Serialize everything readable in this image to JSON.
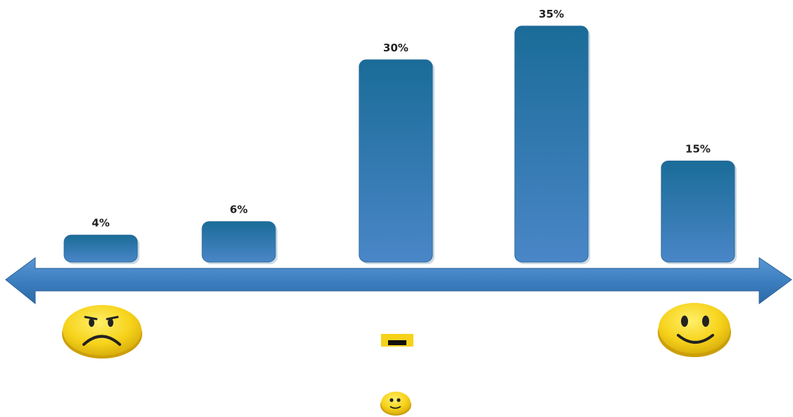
{
  "chart_data": {
    "type": "bar",
    "categories": [
      "",
      "",
      "",
      "",
      ""
    ],
    "values": [
      4,
      6,
      30,
      35,
      15
    ],
    "value_labels": [
      "4%",
      "6%",
      "30%",
      "35%",
      "15%"
    ],
    "title": "",
    "xlabel": "",
    "ylabel": "",
    "ylim": [
      0,
      40
    ],
    "grid": false,
    "legend": "none",
    "axis": "double-headed arrow",
    "colors": {
      "bar_top": "#1a6c98",
      "bar_bottom": "#4a86c8",
      "arrow": "#3d7fc0",
      "face": "#f6d21a",
      "face_shadow": "#d4a90a"
    },
    "scale_icons": [
      "sad-face-icon",
      "neutral-face-icon",
      "happy-face-icon"
    ]
  }
}
